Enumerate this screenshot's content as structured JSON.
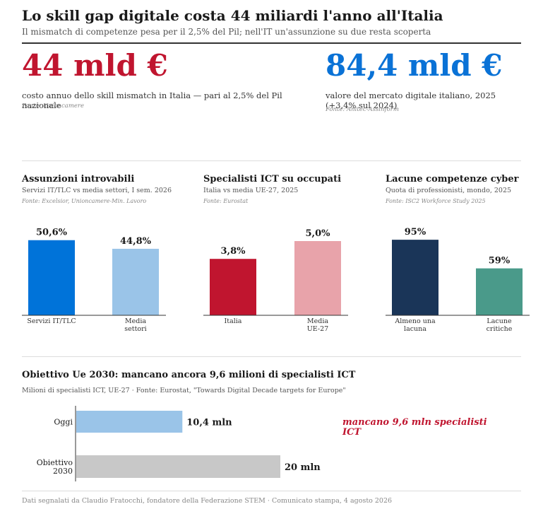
{
  "header": {
    "title": "Lo skill gap digitale costa 44 miliardi l'anno all'Italia",
    "subtitle": "Il mismatch di competenze pesa per il 2,5% del Pil; nell'IT un'assunzione su due resta scoperta"
  },
  "kpis": [
    {
      "value": "44 mld €",
      "color": "#c0152f",
      "desc": "costo annuo dello skill mismatch in Italia — pari al 2,5% del Pil nazionale",
      "source": "Fonte: Unioncamere"
    },
    {
      "value": "84,4 mld €",
      "color": "#0a72d6",
      "desc": "valore del mercato digitale italiano, 2025 (+3,4% sul 2024)",
      "source": "Fonte: Anitec-Assinform"
    }
  ],
  "chart_data": [
    {
      "type": "bar",
      "title": "Assunzioni introvabili",
      "subtitle": "Servizi IT/TLC vs media settori, I sem. 2026",
      "source": "Fonte: Excelsior, Unioncamere-Min. Lavoro",
      "categories": [
        "Servizi IT/TLC",
        "Media settori"
      ],
      "values": [
        50.6,
        44.8
      ],
      "value_labels": [
        "50,6%",
        "44,8%"
      ],
      "colors": [
        "#0073d9",
        "#9ac4e8"
      ],
      "ylim": [
        0,
        60
      ]
    },
    {
      "type": "bar",
      "title": "Specialisti ICT su occupati",
      "subtitle": "Italia vs media UE-27, 2025",
      "source": "Fonte: Eurostat",
      "categories": [
        "Italia",
        "Media UE-27"
      ],
      "values": [
        3.8,
        5.0
      ],
      "value_labels": [
        "3,8%",
        "5,0%"
      ],
      "colors": [
        "#c0152f",
        "#e8a3aa"
      ],
      "ylim": [
        0,
        6
      ]
    },
    {
      "type": "bar",
      "title": "Lacune competenze cyber",
      "subtitle": "Quota di professionisti, mondo, 2025",
      "source": "Fonte: ISC2 Workforce Study 2025",
      "categories": [
        "Almeno una lacuna",
        "Lacune critiche"
      ],
      "values": [
        95,
        59
      ],
      "value_labels": [
        "95%",
        "59%"
      ],
      "colors": [
        "#1a3558",
        "#4a9a8a"
      ],
      "ylim": [
        0,
        112
      ]
    },
    {
      "type": "bar",
      "orientation": "horizontal",
      "title": "Obiettivo Ue 2030: mancano ancora 9,6 milioni di specialisti ICT",
      "subtitle": "Milioni di specialisti ICT, UE-27  ·  Fonte: Eurostat, \"Towards Digital Decade targets for Europe\"",
      "categories": [
        "Oggi",
        "Obiettivo 2030"
      ],
      "values": [
        10.4,
        20
      ],
      "value_labels": [
        "10,4 mln",
        "20 mln"
      ],
      "colors": [
        "#9ac4e8",
        "#c8c8c8"
      ],
      "xlim": [
        0,
        20
      ],
      "annotation": "mancano 9,6 mln specialisti ICT",
      "annotation_color": "#c0152f"
    }
  ],
  "footer": "Dati segnalati da Claudio Fratocchi, fondatore della Federazione STEM  ·  Comunicato stampa, 4 agosto 2026"
}
